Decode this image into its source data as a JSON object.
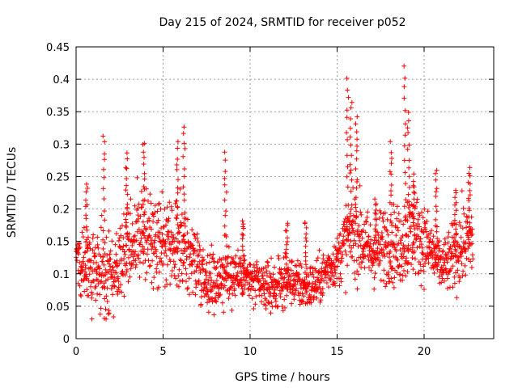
{
  "chart_data": {
    "type": "scatter",
    "title": "Day 215 of 2024, SRMTID for receiver p052",
    "xlabel": "GPS time / hours",
    "ylabel": "SRMTID / TECUs",
    "xlim": [
      0,
      24
    ],
    "ylim": [
      0,
      0.45
    ],
    "xticks": [
      0,
      5,
      10,
      15,
      20
    ],
    "xtick_labels": [
      "0",
      "5",
      "10",
      "15",
      "20"
    ],
    "yticks": [
      0,
      0.05,
      0.1,
      0.15,
      0.2,
      0.25,
      0.3,
      0.35,
      0.4,
      0.45
    ],
    "ytick_labels": [
      "0",
      "0.05",
      "0.1",
      "0.15",
      "0.2",
      "0.25",
      "0.3",
      "0.35",
      "0.4",
      "0.45"
    ],
    "grid": true,
    "marker": "plus",
    "color": "#ff0000",
    "series": [
      {
        "name": "SRMTID p052",
        "envelope": {
          "hours": [
            0.0,
            0.5,
            1.0,
            1.5,
            2.0,
            2.5,
            3.0,
            3.5,
            4.0,
            4.5,
            5.0,
            5.5,
            6.0,
            6.5,
            7.0,
            7.5,
            8.0,
            8.5,
            9.0,
            9.5,
            10.0,
            10.5,
            11.0,
            11.5,
            12.0,
            12.5,
            13.0,
            13.5,
            14.0,
            14.5,
            15.0,
            15.5,
            16.0,
            16.5,
            17.0,
            17.5,
            18.0,
            18.5,
            19.0,
            19.5,
            20.0,
            20.5,
            21.0,
            21.5,
            22.0,
            22.5,
            22.8
          ],
          "median": [
            0.13,
            0.12,
            0.1,
            0.1,
            0.09,
            0.12,
            0.15,
            0.16,
            0.16,
            0.14,
            0.15,
            0.13,
            0.14,
            0.13,
            0.12,
            0.09,
            0.09,
            0.1,
            0.1,
            0.1,
            0.09,
            0.08,
            0.08,
            0.08,
            0.09,
            0.09,
            0.08,
            0.08,
            0.09,
            0.11,
            0.12,
            0.15,
            0.17,
            0.15,
            0.13,
            0.14,
            0.15,
            0.14,
            0.16,
            0.16,
            0.15,
            0.13,
            0.11,
            0.12,
            0.14,
            0.15,
            0.15
          ],
          "spread": [
            0.03,
            0.05,
            0.05,
            0.05,
            0.06,
            0.05,
            0.06,
            0.06,
            0.06,
            0.05,
            0.05,
            0.05,
            0.06,
            0.05,
            0.05,
            0.03,
            0.04,
            0.04,
            0.04,
            0.03,
            0.03,
            0.03,
            0.03,
            0.03,
            0.03,
            0.03,
            0.03,
            0.03,
            0.03,
            0.03,
            0.03,
            0.05,
            0.06,
            0.05,
            0.04,
            0.05,
            0.05,
            0.05,
            0.06,
            0.05,
            0.05,
            0.04,
            0.03,
            0.04,
            0.05,
            0.05,
            0.05
          ]
        },
        "peaks": [
          {
            "hour": 0.6,
            "value": 0.24
          },
          {
            "hour": 1.6,
            "value": 0.315
          },
          {
            "hour": 2.9,
            "value": 0.285
          },
          {
            "hour": 3.9,
            "value": 0.305
          },
          {
            "hour": 5.8,
            "value": 0.3
          },
          {
            "hour": 6.2,
            "value": 0.325
          },
          {
            "hour": 8.6,
            "value": 0.285
          },
          {
            "hour": 9.6,
            "value": 0.185
          },
          {
            "hour": 12.1,
            "value": 0.18
          },
          {
            "hour": 13.2,
            "value": 0.18
          },
          {
            "hour": 15.6,
            "value": 0.4
          },
          {
            "hour": 15.8,
            "value": 0.365
          },
          {
            "hour": 16.1,
            "value": 0.345
          },
          {
            "hour": 17.2,
            "value": 0.215
          },
          {
            "hour": 18.1,
            "value": 0.3
          },
          {
            "hour": 18.9,
            "value": 0.42
          },
          {
            "hour": 19.1,
            "value": 0.35
          },
          {
            "hour": 19.4,
            "value": 0.25
          },
          {
            "hour": 20.7,
            "value": 0.26
          },
          {
            "hour": 21.8,
            "value": 0.23
          },
          {
            "hour": 22.6,
            "value": 0.265
          }
        ]
      }
    ]
  }
}
